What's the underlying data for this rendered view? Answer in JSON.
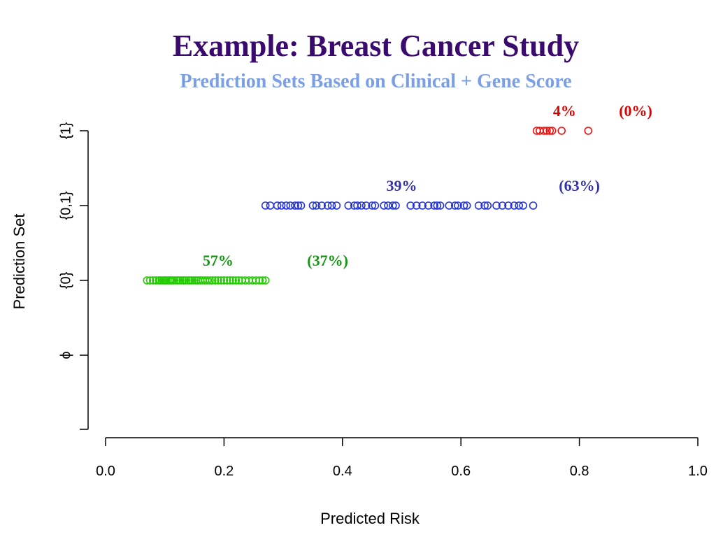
{
  "slide": {
    "title": "Example: Breast Cancer Study",
    "subtitle": "Prediction Sets Based on Clinical + Gene Score"
  },
  "chart_data": {
    "type": "scatter",
    "xlabel": "Predicted Risk",
    "ylabel": "Prediction Set",
    "xlim": [
      0.0,
      1.0
    ],
    "x_ticks": [
      "0.0",
      "0.2",
      "0.4",
      "0.6",
      "0.8",
      "1.0"
    ],
    "y_categories": [
      "ϕ",
      "{0}",
      "{0,1}",
      "{1}"
    ],
    "grid": false,
    "marker": "open-circle",
    "series": [
      {
        "category": "{0}",
        "color": "#22cc00",
        "x": [
          0.07,
          0.075,
          0.08,
          0.085,
          0.09,
          0.092,
          0.095,
          0.098,
          0.1,
          0.102,
          0.105,
          0.108,
          0.11,
          0.113,
          0.116,
          0.12,
          0.123,
          0.126,
          0.13,
          0.133,
          0.136,
          0.14,
          0.143,
          0.146,
          0.15,
          0.153,
          0.156,
          0.16,
          0.164,
          0.168,
          0.172,
          0.176,
          0.18,
          0.185,
          0.19,
          0.195,
          0.2,
          0.205,
          0.21,
          0.215,
          0.22,
          0.225,
          0.23,
          0.236,
          0.242,
          0.248,
          0.254,
          0.26,
          0.265,
          0.27
        ]
      },
      {
        "category": "{0,1}",
        "color": "#2233dd",
        "x": [
          0.27,
          0.278,
          0.29,
          0.297,
          0.305,
          0.312,
          0.32,
          0.325,
          0.33,
          0.35,
          0.356,
          0.365,
          0.375,
          0.382,
          0.39,
          0.41,
          0.42,
          0.425,
          0.432,
          0.44,
          0.45,
          0.455,
          0.47,
          0.477,
          0.485,
          0.49,
          0.515,
          0.525,
          0.535,
          0.545,
          0.555,
          0.56,
          0.565,
          0.58,
          0.59,
          0.595,
          0.605,
          0.61,
          0.63,
          0.64,
          0.645,
          0.66,
          0.67,
          0.68,
          0.69,
          0.698,
          0.705,
          0.722
        ]
      },
      {
        "category": "{1}",
        "color": "#ee1111",
        "x": [
          0.728,
          0.733,
          0.74,
          0.745,
          0.75,
          0.754,
          0.77,
          0.815
        ]
      }
    ],
    "annotations": [
      {
        "text": "57%",
        "x": 0.19,
        "category": "{0}",
        "color": "#119911"
      },
      {
        "text": "(37%)",
        "x": 0.375,
        "category": "{0}",
        "color": "#119911"
      },
      {
        "text": "39%",
        "x": 0.5,
        "category": "{0,1}",
        "color": "#3333aa"
      },
      {
        "text": "(63%)",
        "x": 0.8,
        "category": "{0,1}",
        "color": "#3333aa"
      },
      {
        "text": "4%",
        "x": 0.775,
        "category": "{1}",
        "color": "#dd0000"
      },
      {
        "text": "(0%)",
        "x": 0.895,
        "category": "{1}",
        "color": "#dd0000"
      }
    ]
  }
}
